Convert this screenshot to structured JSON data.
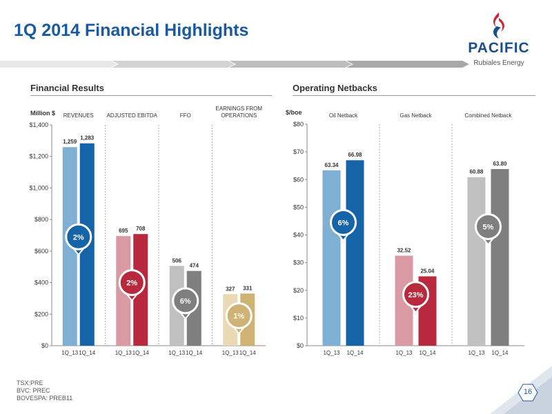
{
  "slide": {
    "title": "1Q 2014 Financial Highlights",
    "logo": {
      "name": "PACIFIC",
      "sub": "Rubiales Energy"
    },
    "page_number": "16",
    "footer": [
      "TSX:PRE",
      "BVC: PREC",
      "BOVESPA: PREB11"
    ]
  },
  "sections": {
    "financial": "Financial Results",
    "netbacks": "Operating Netbacks"
  },
  "chart_data": [
    {
      "type": "bar",
      "title": "Financial Results",
      "ylabel": "Million $",
      "ylim": [
        0,
        1400
      ],
      "yticks": [
        "$0",
        "$200",
        "$400",
        "$600",
        "$800",
        "$1,000",
        "$1,200",
        "$1,400"
      ],
      "groups": [
        {
          "name": "REVENUES",
          "categories": [
            "1Q_13",
            "1Q_14"
          ],
          "values": [
            1259,
            1283
          ],
          "labels": [
            "1,259",
            "1,283"
          ],
          "colors": [
            "#7fb0d3",
            "#1664a8"
          ],
          "change": "2%",
          "badge_color": "#1664a8",
          "badge_value": 690
        },
        {
          "name": "ADJUSTED EBITDA",
          "categories": [
            "1Q_13",
            "1Q_14"
          ],
          "values": [
            695,
            708
          ],
          "labels": [
            "695",
            "708"
          ],
          "colors": [
            "#d99aa3",
            "#b8293d"
          ],
          "change": "2%",
          "badge_color": "#b8293d",
          "badge_value": 400
        },
        {
          "name": "FFO",
          "categories": [
            "1Q_13",
            "1Q_14"
          ],
          "values": [
            506,
            474
          ],
          "labels": [
            "506",
            "474"
          ],
          "colors": [
            "#c0c0c0",
            "#7f7f7f"
          ],
          "change": "6%",
          "badge_color": "#7f7f7f",
          "badge_value": 285
        },
        {
          "name": "EARNINGS FROM OPERATIONS",
          "categories": [
            "1Q_13",
            "1Q_14"
          ],
          "values": [
            327,
            331
          ],
          "labels": [
            "327",
            "331"
          ],
          "colors": [
            "#ead9b5",
            "#cfb374"
          ],
          "change": "1%",
          "badge_color": "#cfb374",
          "badge_value": 190
        }
      ]
    },
    {
      "type": "bar",
      "title": "Operating Netbacks",
      "ylabel": "$/boe",
      "ylim": [
        0,
        80
      ],
      "yticks": [
        "$0",
        "$10",
        "$20",
        "$30",
        "$40",
        "$50",
        "$60",
        "$70",
        "$80"
      ],
      "groups": [
        {
          "name": "Oil Netback",
          "categories": [
            "1Q_13",
            "1Q_14"
          ],
          "values": [
            63.34,
            66.98
          ],
          "labels": [
            "63.34",
            "66.98"
          ],
          "colors": [
            "#7fb0d3",
            "#1664a8"
          ],
          "change": "6%",
          "badge_color": "#1664a8",
          "badge_value": 44.5
        },
        {
          "name": "Gas Netback",
          "categories": [
            "1Q_13",
            "1Q_14"
          ],
          "values": [
            32.52,
            25.04
          ],
          "labels": [
            "32.52",
            "25.04"
          ],
          "colors": [
            "#d99aa3",
            "#b8293d"
          ],
          "change": "23%",
          "badge_color": "#b8293d",
          "badge_value": 18.5
        },
        {
          "name": "Combined Netback",
          "categories": [
            "1Q_13",
            "1Q_14"
          ],
          "values": [
            60.88,
            63.8
          ],
          "labels": [
            "60.88",
            "63.80"
          ],
          "colors": [
            "#c0c0c0",
            "#7f7f7f"
          ],
          "change": "5%",
          "badge_color": "#7f7f7f",
          "badge_value": 43
        }
      ]
    }
  ]
}
